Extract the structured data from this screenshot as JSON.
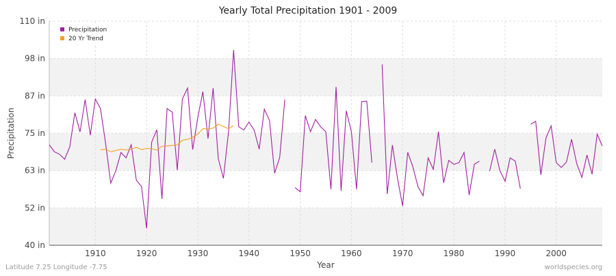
{
  "chart_data": {
    "type": "line",
    "title": "Yearly Total Precipitation 1901 - 2009",
    "x_label": "Year",
    "y_label": "Precipitation",
    "footer_left": "Latitude 7.25 Longitude -7.75",
    "footer_right": "worldspecies.org",
    "legend": "upper left",
    "grid": true,
    "xlim": [
      1901,
      2009
    ],
    "xticks": [
      1910,
      1920,
      1930,
      1940,
      1950,
      1960,
      1970,
      1980,
      1990,
      2000
    ],
    "ylim": [
      40,
      110
    ],
    "yticks": [
      {
        "value": 40,
        "label": "40 in"
      },
      {
        "value": 51.67,
        "label": "52 in"
      },
      {
        "value": 63.33,
        "label": "63 in"
      },
      {
        "value": 75,
        "label": "75 in"
      },
      {
        "value": 86.67,
        "label": "87 in"
      },
      {
        "value": 98.33,
        "label": "98 in"
      },
      {
        "value": 110,
        "label": "110 in"
      }
    ],
    "x": [
      1901,
      1902,
      1903,
      1904,
      1905,
      1906,
      1907,
      1908,
      1909,
      1910,
      1911,
      1912,
      1913,
      1914,
      1915,
      1916,
      1917,
      1918,
      1919,
      1920,
      1921,
      1922,
      1923,
      1924,
      1925,
      1926,
      1927,
      1928,
      1929,
      1930,
      1931,
      1932,
      1933,
      1934,
      1935,
      1936,
      1937,
      1938,
      1939,
      1940,
      1941,
      1942,
      1943,
      1944,
      1945,
      1946,
      1947,
      1948,
      1949,
      1950,
      1951,
      1952,
      1953,
      1954,
      1955,
      1956,
      1957,
      1958,
      1959,
      1960,
      1961,
      1962,
      1963,
      1964,
      1965,
      1966,
      1967,
      1968,
      1969,
      1970,
      1971,
      1972,
      1973,
      1974,
      1975,
      1976,
      1977,
      1978,
      1979,
      1980,
      1981,
      1982,
      1983,
      1984,
      1985,
      1986,
      1987,
      1988,
      1989,
      1990,
      1991,
      1992,
      1993,
      1994,
      1995,
      1996,
      1997,
      1998,
      1999,
      2000,
      2001,
      2002,
      2003,
      2004,
      2005,
      2006,
      2007,
      2008,
      2009
    ],
    "series": [
      {
        "name": "Precipitation",
        "color": "#a0209f",
        "values": [
          71.4,
          69.2,
          68.4,
          66.9,
          70.7,
          81.4,
          75.4,
          85.5,
          74.4,
          85.7,
          82.7,
          71.8,
          59.4,
          63.3,
          69.0,
          67.3,
          71.4,
          60.3,
          58.4,
          45.3,
          72.2,
          76.1,
          54.5,
          82.7,
          81.6,
          63.5,
          85.7,
          89.1,
          69.9,
          79.9,
          88.0,
          73.3,
          89.1,
          67.1,
          60.9,
          75.4,
          101.0,
          77,
          76,
          78.5,
          76,
          70,
          82.5,
          79,
          62.5,
          67.5,
          85.5,
          null,
          58,
          56.7,
          80.5,
          75.5,
          79.3,
          77,
          75.5,
          57.5,
          89.5,
          57,
          82,
          75.5,
          57.5,
          84.9,
          85,
          65.8,
          null,
          96.5,
          56,
          71.3,
          61,
          52.3,
          69,
          64.5,
          58.3,
          55.5,
          67.3,
          63.7,
          75.5,
          59.5,
          66.5,
          65.3,
          65.8,
          69,
          55.7,
          65.3,
          66.3,
          null,
          63.2,
          70,
          63.3,
          60,
          67.3,
          66.3,
          57.7,
          null,
          77.8,
          78.7,
          62,
          73.5,
          77.3,
          65.8,
          64.3,
          66,
          73.1,
          65.5,
          61.2,
          68.2,
          62.2,
          74.7,
          71
        ]
      },
      {
        "name": "20 Yr Trend",
        "color": "#f5a020",
        "values": [
          null,
          null,
          null,
          null,
          null,
          null,
          null,
          null,
          null,
          null,
          69.8,
          70.0,
          69.2,
          69.6,
          70.0,
          69.8,
          70.0,
          70.6,
          69.9,
          70.2,
          70.2,
          69.7,
          70.9,
          71.0,
          71.2,
          71.3,
          72.8,
          73.1,
          73.7,
          74.7,
          76.4,
          76.3,
          76.6,
          77.8,
          77.1,
          76.4,
          77.4,
          null,
          null,
          null,
          null,
          null,
          null,
          null,
          null,
          null,
          null,
          null,
          null,
          null,
          null,
          null,
          null,
          null,
          null,
          null,
          null,
          null,
          null,
          null,
          null,
          null,
          null,
          null,
          null,
          null,
          null,
          null,
          null,
          null,
          null,
          null,
          null,
          null,
          null,
          null,
          null,
          null,
          null,
          null,
          null,
          null,
          null,
          null,
          null,
          null,
          null,
          null,
          null,
          null,
          null,
          null,
          null,
          null,
          null,
          null,
          null,
          null,
          null,
          null,
          null,
          null,
          null,
          null,
          null,
          null,
          null,
          null,
          null
        ]
      }
    ]
  }
}
